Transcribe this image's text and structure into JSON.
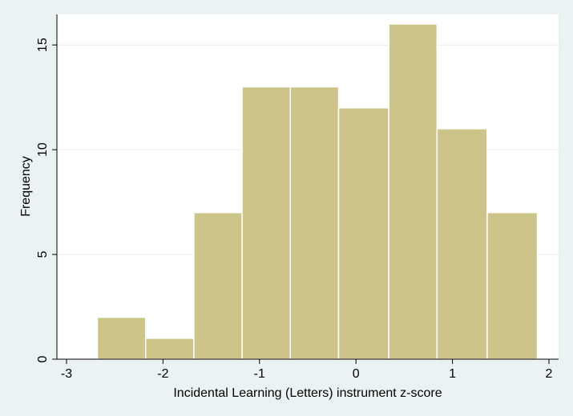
{
  "chart_data": {
    "type": "bar",
    "bin_edges": [
      -2.68,
      -2.18,
      -1.68,
      -1.18,
      -0.68,
      -0.18,
      0.34,
      0.84,
      1.36,
      1.88
    ],
    "values": [
      2,
      1,
      7,
      13,
      13,
      12,
      16,
      11,
      7
    ],
    "xlabel": "Incidental Learning (Letters) instrument z-score",
    "ylabel": "Frequency",
    "xlim": [
      -3.0,
      2.0
    ],
    "ylim": [
      0,
      17
    ],
    "xticks": [
      -3,
      -2,
      -1,
      0,
      1,
      2
    ],
    "xtick_labels": [
      "-3",
      "-2",
      "-1",
      "0",
      "1",
      "2"
    ],
    "yticks": [
      0,
      5,
      10,
      15
    ],
    "ytick_labels": [
      "0",
      "5",
      "10",
      "15"
    ],
    "grid": true,
    "legend": "none",
    "colors": {
      "background": "#eaf2f3",
      "plot_background": "#ffffff",
      "bar_fill": "#cdc48a",
      "bar_stroke": "#ffffff",
      "gridline": "#e6eef0",
      "axis": "#000000"
    }
  }
}
